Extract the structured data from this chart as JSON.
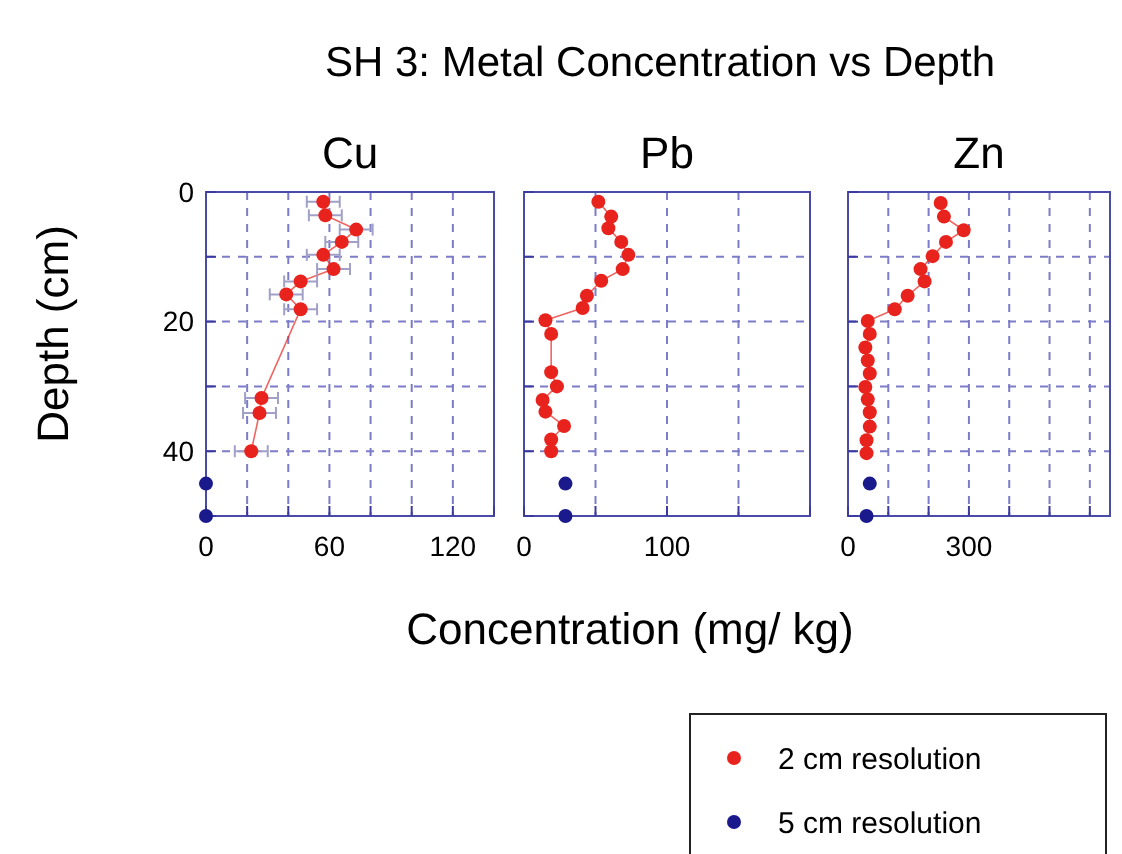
{
  "chart_data": [
    {
      "type": "line",
      "title": "Cu",
      "ylabel": "Depth (cm)",
      "xlim": [
        0,
        140
      ],
      "xticks": [
        0,
        {
          "value": 20,
          "label": null
        },
        {
          "value": 40,
          "label": null
        },
        60,
        {
          "value": 80,
          "label": null
        },
        {
          "value": 100,
          "label": null
        },
        120,
        {
          "value": 140,
          "label": null
        }
      ],
      "ylim": [
        50,
        0
      ],
      "yticks": [
        0,
        {
          "value": 10,
          "label": null
        },
        20,
        {
          "value": 30,
          "label": null
        },
        40,
        {
          "value": 50,
          "label": null
        }
      ],
      "grid": true,
      "marker": "circle",
      "line_style": "solid",
      "series": [
        {
          "color": "#e8231e",
          "x": [
            57,
            58,
            73,
            66,
            57,
            62,
            46,
            39,
            46,
            27,
            26,
            22
          ],
          "values": [
            1.5,
            3.6,
            5.8,
            7.7,
            9.7,
            11.9,
            13.8,
            15.8,
            18.1,
            31.8,
            34.1,
            40
          ],
          "xerrors": [
            8,
            8,
            8,
            8,
            8,
            8,
            8,
            8,
            8,
            8,
            8,
            8
          ]
        },
        {
          "type": "scatter",
          "color": "#1a1a8c",
          "x": [
            0,
            0
          ],
          "values": [
            45,
            50
          ]
        }
      ]
    },
    {
      "type": "line",
      "title": "Pb",
      "subtitle": "SH 3: Metal Concentration vs Depth",
      "xlabel": "Concentration (mg/ kg)",
      "xlim": [
        0,
        200
      ],
      "xticks": [
        0,
        {
          "value": 50,
          "label": null
        },
        100,
        {
          "value": 150,
          "label": null
        },
        {
          "value": 200,
          "label": null
        }
      ],
      "ylim": [
        50,
        0
      ],
      "yticks": [
        {
          "value": 0,
          "label": null
        },
        {
          "value": 10,
          "label": null
        },
        {
          "value": 20,
          "label": null
        },
        {
          "value": 30,
          "label": null
        },
        {
          "value": 40,
          "label": null
        },
        {
          "value": 50,
          "label": null
        }
      ],
      "tick_labels": "x",
      "grid": true,
      "marker": "circle",
      "line_style": "solid",
      "series": [
        {
          "color": "#e8231e",
          "x": [
            52,
            61,
            59,
            68,
            73,
            69,
            54,
            44,
            41,
            15,
            19,
            19,
            23,
            13,
            15,
            28,
            19,
            19
          ],
          "values": [
            1.5,
            3.8,
            5.6,
            7.7,
            9.7,
            11.9,
            13.7,
            16,
            17.9,
            19.8,
            21.9,
            27.8,
            30,
            32.1,
            33.9,
            36.1,
            38.2,
            40
          ]
        },
        {
          "type": "scatter",
          "color": "#1a1a8c",
          "x": [
            29,
            29
          ],
          "values": [
            45,
            50
          ]
        }
      ]
    },
    {
      "type": "line",
      "title": "Zn",
      "xlim": [
        0,
        650
      ],
      "xticks": [
        0,
        {
          "value": 100,
          "label": null
        },
        {
          "value": 200,
          "label": null
        },
        300,
        {
          "value": 400,
          "label": null
        },
        {
          "value": 500,
          "label": null
        },
        {
          "value": 600,
          "label": null
        }
      ],
      "ylim": [
        50,
        0
      ],
      "yticks": [
        {
          "value": 0,
          "label": null
        },
        {
          "value": 10,
          "label": null
        },
        {
          "value": 20,
          "label": null
        },
        {
          "value": 30,
          "label": null
        },
        {
          "value": 40,
          "label": null
        },
        {
          "value": 50,
          "label": null
        }
      ],
      "tick_labels": "x",
      "grid": true,
      "marker": "circle",
      "line_style": "solid",
      "legend": "bottom left",
      "series": [
        {
          "name": "2 cm resolution",
          "color": "#e8231e",
          "x": [
            230,
            238,
            287,
            243,
            210,
            180,
            190,
            148,
            116,
            49,
            54,
            43,
            49,
            54,
            43,
            49,
            54,
            54,
            46,
            46
          ],
          "values": [
            1.7,
            3.8,
            5.9,
            7.7,
            9.9,
            11.9,
            13.8,
            16,
            18.1,
            19.9,
            21.9,
            24,
            26,
            28,
            30.1,
            32,
            34,
            36.2,
            38.3,
            40.3
          ]
        },
        {
          "type": "scatter",
          "name": "5 cm resolution",
          "color": "#1a1a8c",
          "x": [
            54,
            46
          ],
          "values": [
            45,
            50
          ]
        }
      ]
    }
  ]
}
